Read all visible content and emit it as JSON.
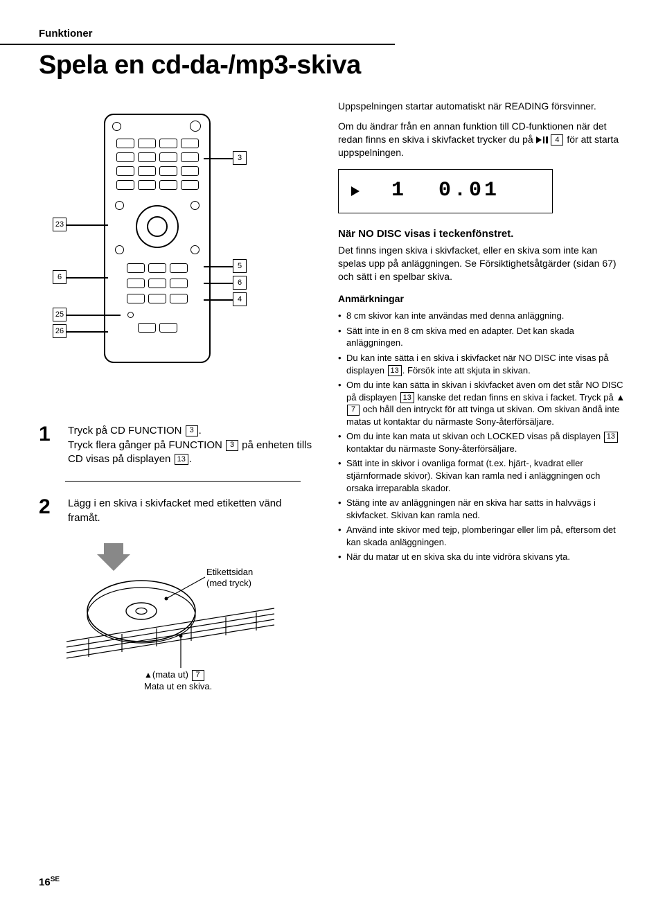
{
  "section": "Funktioner",
  "title": "Spela en cd-da-/mp3-skiva",
  "remote_callouts": {
    "r3": "3",
    "r23": "23",
    "r6l": "6",
    "r25": "25",
    "r26": "26",
    "r5": "5",
    "r6r": "6",
    "r4": "4"
  },
  "display": {
    "track": "1",
    "time": "0.01"
  },
  "steps": {
    "s1": {
      "num": "1",
      "line1a": "Tryck på CD FUNCTION ",
      "key1": "3",
      "line1b": ".",
      "line2a": "Tryck flera gånger på FUNCTION ",
      "key2": "3",
      "line2b": " på enheten tills CD visas på displayen ",
      "key3": "13",
      "line2c": "."
    },
    "s2": {
      "num": "2",
      "text": "Lägg i en skiva i skivfacket med etiketten vänd framåt."
    }
  },
  "disc": {
    "label_line1": "Etikettsidan",
    "label_line2": "(med tryck)",
    "eject_a": "(mata ut) ",
    "eject_key": "7",
    "eject_b": "Mata ut en skiva."
  },
  "right": {
    "p1": "Uppspelningen startar automatiskt när READING försvinner.",
    "p2a": "Om du ändrar från en annan funktion till CD-funktionen när det redan finns en skiva i skivfacket trycker du på ",
    "p2key": "4",
    "p2b": " för att starta uppspelningen.",
    "nodisc_title": "När NO DISC visas i teckenfönstret.",
    "nodisc_body": "Det finns ingen skiva i skivfacket, eller en skiva som inte kan spelas upp på anläggningen. Se Försiktighetsåtgärder (sidan 67) och sätt i en spelbar skiva.",
    "notes_title": "Anmärkningar",
    "bullets": [
      {
        "text": "8 cm skivor kan inte användas med denna anläggning."
      },
      {
        "text": "Sätt inte in en 8 cm skiva med en adapter. Det kan skada anläggningen."
      },
      {
        "pre": "Du kan inte sätta i en skiva i skivfacket när NO DISC inte visas på displayen ",
        "k1": "13",
        "post": ". Försök inte att skjuta in skivan."
      },
      {
        "pre": "Om du inte kan sätta in skivan i skivfacket även om det står NO DISC på displayen ",
        "k1": "13",
        "mid": " kanske det redan finns en skiva i facket. Tryck på ▲ ",
        "k2": "7",
        "post": " och håll den intryckt för att tvinga ut skivan. Om skivan ändå inte matas ut kontaktar du närmaste Sony-återförsäljare."
      },
      {
        "pre": "Om du inte kan mata ut skivan och LOCKED visas på displayen ",
        "k1": "13",
        "post": " kontaktar du närmaste Sony-återförsäljare."
      },
      {
        "text": "Sätt inte in skivor i ovanliga format (t.ex. hjärt-, kvadrat eller stjärnformade skivor). Skivan kan ramla ned i anläggningen och orsaka irreparabla skador."
      },
      {
        "text": "Stäng inte av anläggningen när en skiva har satts in halvvägs i skivfacket. Skivan kan ramla ned."
      },
      {
        "text": "Använd inte skivor med tejp, plomberingar eller lim på, eftersom det kan skada anläggningen."
      },
      {
        "text": "När du matar ut en skiva ska du inte vidröra skivans yta."
      }
    ]
  },
  "page": {
    "num": "16",
    "suffix": "SE"
  }
}
